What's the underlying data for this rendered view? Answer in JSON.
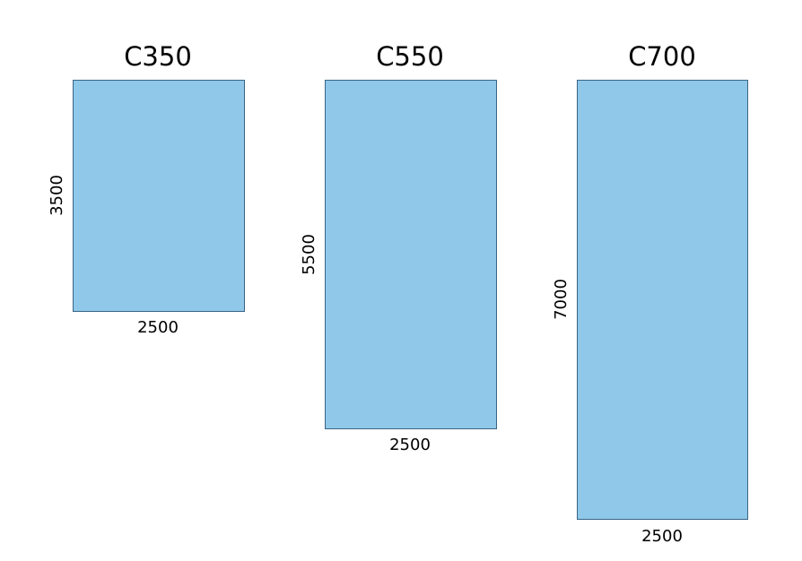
{
  "panels": [
    {
      "title": "C350",
      "width": 2500,
      "height": 3500
    },
    {
      "title": "C550",
      "width": 2500,
      "height": 5500
    },
    {
      "title": "C700",
      "width": 2500,
      "height": 7000
    }
  ]
}
